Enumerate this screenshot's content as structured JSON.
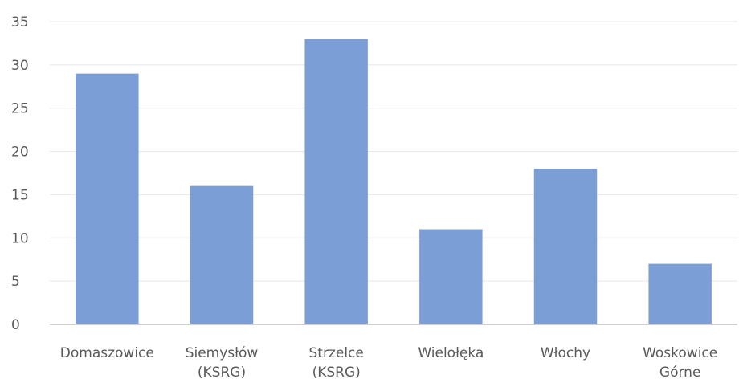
{
  "chart_data": {
    "type": "bar",
    "title": "",
    "xlabel": "",
    "ylabel": "",
    "categories": [
      "Domaszowice",
      "Siemysłów (KSRG)",
      "Strzelce (KSRG)",
      "Wielołęka",
      "Włochy",
      "Woskowice Górne"
    ],
    "category_lines": [
      [
        "Domaszowice"
      ],
      [
        "Siemysłów",
        "(KSRG)"
      ],
      [
        "Strzelce",
        "(KSRG)"
      ],
      [
        "Wielołęka"
      ],
      [
        "Włochy"
      ],
      [
        "Woskowice",
        "Górne"
      ]
    ],
    "values": [
      29,
      16,
      33,
      11,
      18,
      7
    ],
    "ylim": [
      0,
      35
    ],
    "yticks": [
      0,
      5,
      10,
      15,
      20,
      25,
      30,
      35
    ],
    "grid": true,
    "legend": "none",
    "bar_color": "#7b9ed6"
  }
}
